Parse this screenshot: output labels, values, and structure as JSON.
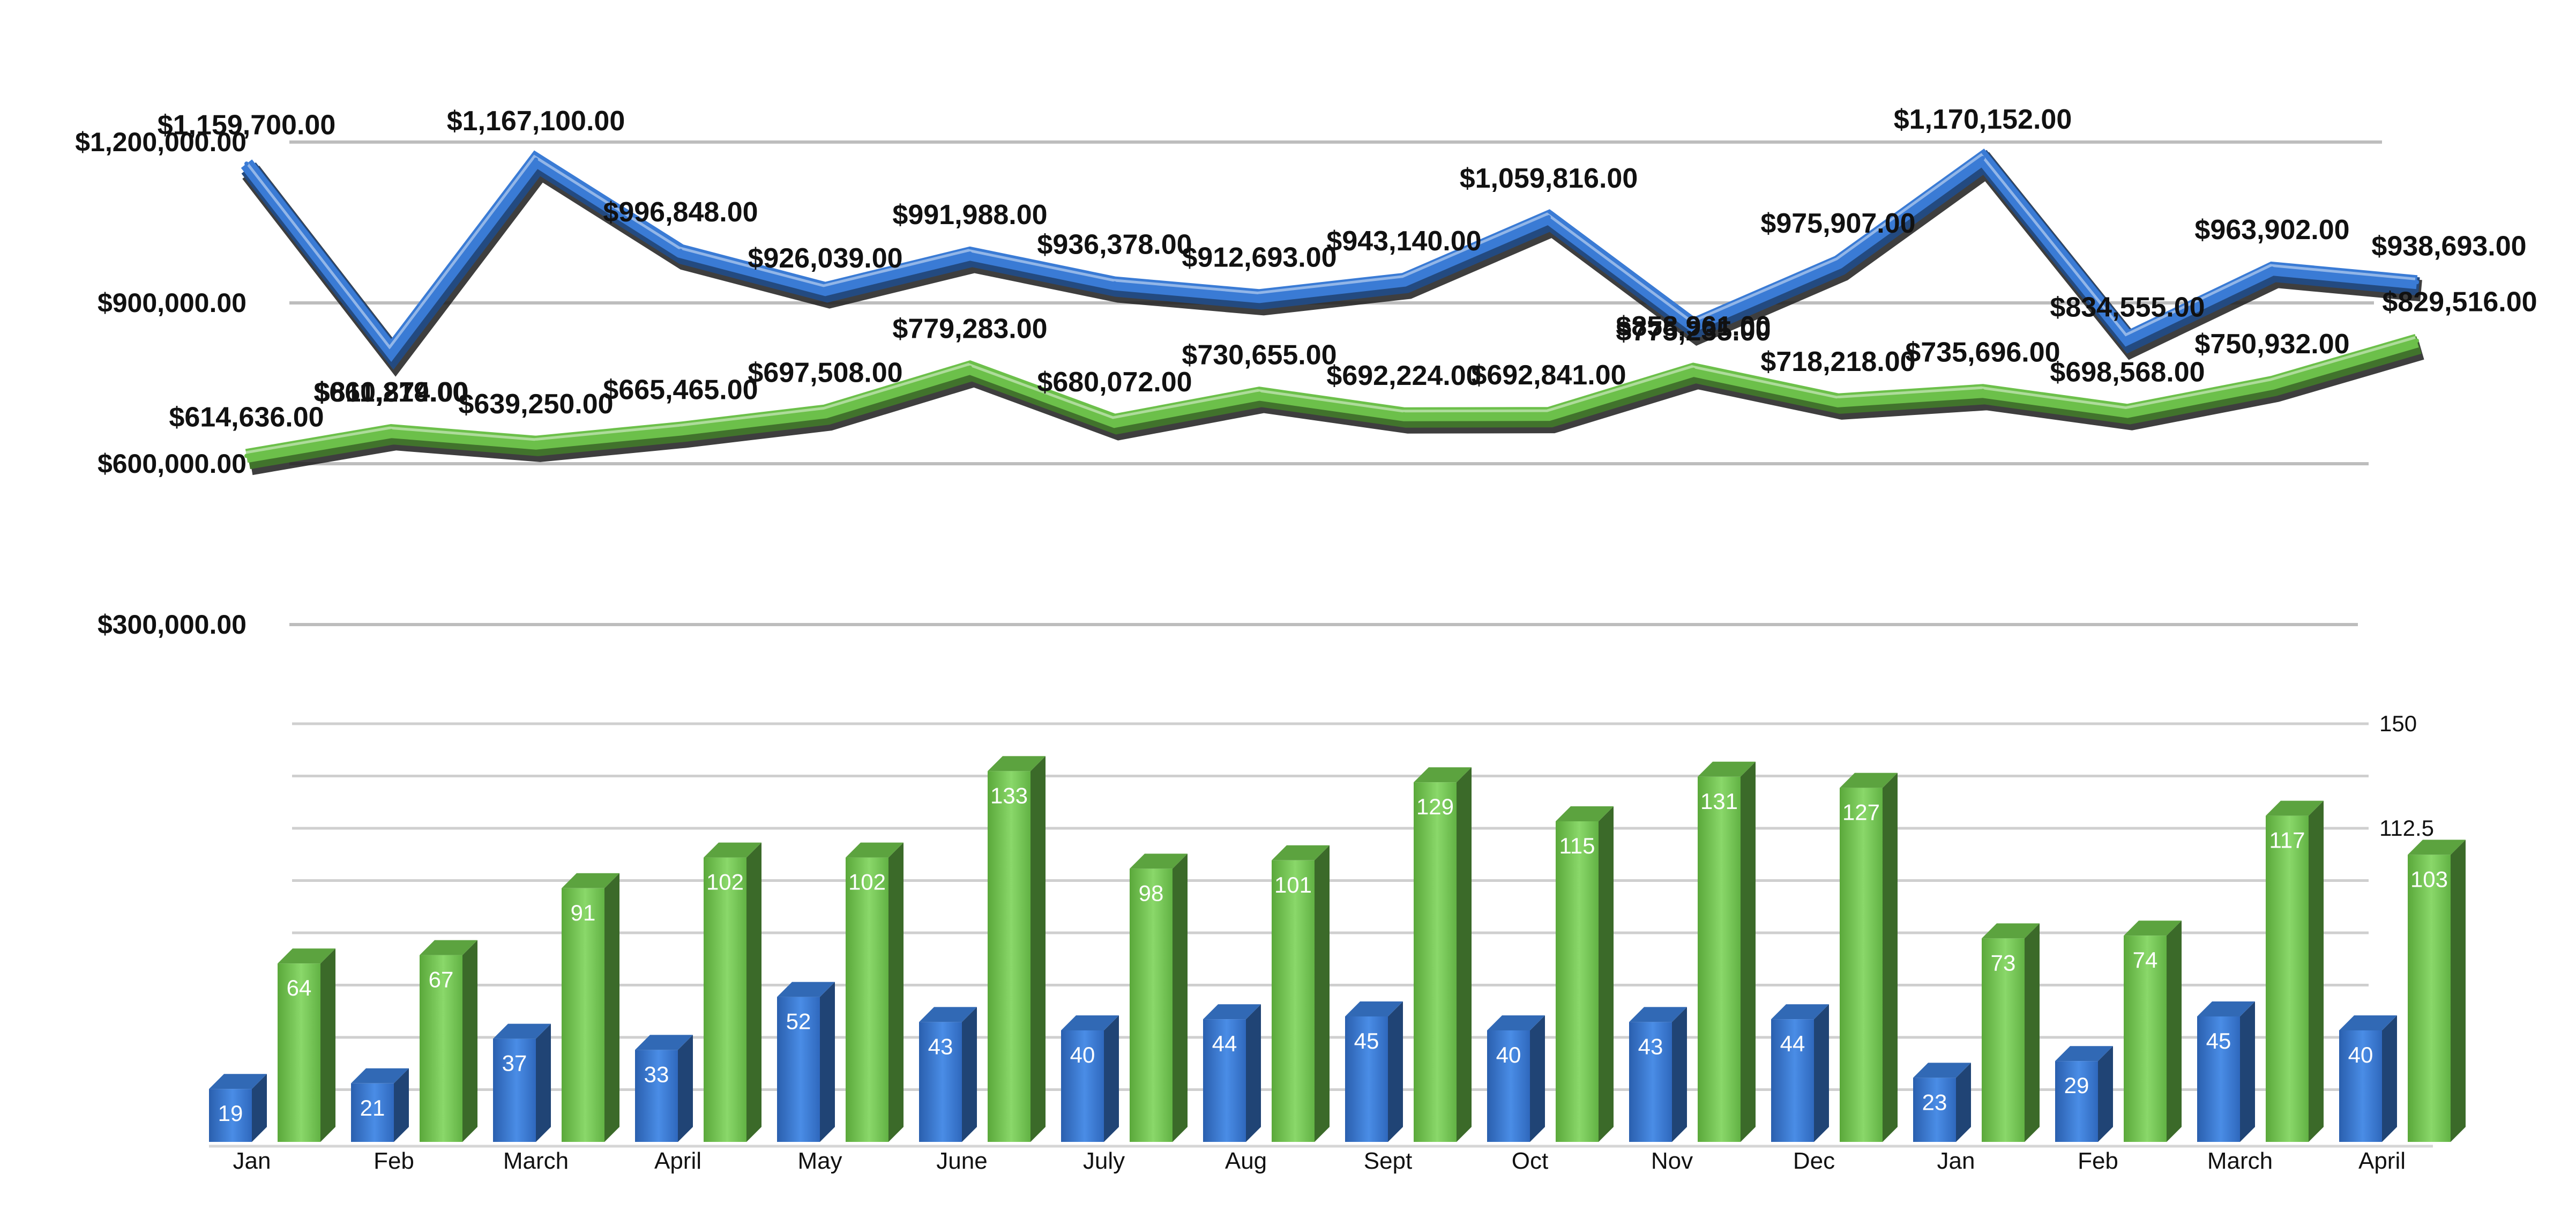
{
  "chart_data": [
    {
      "type": "line",
      "categories": [
        "Jan",
        "Feb",
        "March",
        "April",
        "May",
        "June",
        "July",
        "Aug",
        "Sept",
        "Oct",
        "Nov",
        "Dec",
        "Jan",
        "Feb",
        "March",
        "April"
      ],
      "y_ticks": [
        "$1,200,000.00",
        "$900,000.00",
        "$600,000.00",
        "$300,000.00"
      ],
      "y_tick_values": [
        1200000,
        900000,
        600000,
        300000
      ],
      "ylim": [
        0,
        1200000
      ],
      "series": [
        {
          "color": "#3a7bd5",
          "values": [
            1159700,
            811219,
            1167100,
            996848,
            926039,
            991988,
            936378,
            912693,
            943140,
            1059816,
            858961,
            975907,
            1170152,
            834555,
            963902,
            938693
          ],
          "labels": [
            "$1,159,700.00",
            "$811,219.00",
            "$1,167,100.00",
            "$996,848.00",
            "$926,039.00",
            "$991,988.00",
            "$936,378.00",
            "$912,693.00",
            "$943,140.00",
            "$1,059,816.00",
            "$858,961.00",
            "$975,907.00",
            "$1,170,152.00",
            "$834,555.00",
            "$963,902.00",
            "$938,693.00"
          ]
        },
        {
          "color": "#6cc04a",
          "values": [
            614636,
            660874,
            639250,
            665465,
            697508,
            779283,
            680072,
            730655,
            692224,
            692841,
            775235,
            718218,
            735696,
            698568,
            750932,
            829516
          ],
          "labels": [
            "$614,636.00",
            "$660,874.00",
            "$639,250.00",
            "$665,465.00",
            "$697,508.00",
            "$779,283.00",
            "$680,072.00",
            "$730,655.00",
            "$692,224.00",
            "$692,841.00",
            "$775,235.00",
            "$718,218.00",
            "$735,696.00",
            "$698,568.00",
            "$750,932.00",
            "$829,516.00"
          ]
        }
      ],
      "grid": true
    },
    {
      "type": "bar",
      "categories": [
        "Jan",
        "Feb",
        "March",
        "April",
        "May",
        "June",
        "July",
        "Aug",
        "Sept",
        "Oct",
        "Nov",
        "Dec",
        "Jan",
        "Feb",
        "March",
        "April"
      ],
      "y_ticks": [
        "150",
        "112.5"
      ],
      "y_tick_values": [
        150,
        112.5
      ],
      "ylim": [
        0,
        150
      ],
      "series": [
        {
          "color": "#3a7bd5",
          "values": [
            19,
            21,
            37,
            33,
            52,
            43,
            40,
            44,
            45,
            40,
            43,
            44,
            23,
            29,
            45,
            40
          ]
        },
        {
          "color": "#6cc04a",
          "values": [
            64,
            67,
            91,
            102,
            102,
            133,
            98,
            101,
            129,
            115,
            131,
            127,
            73,
            74,
            117,
            103
          ]
        }
      ],
      "grid": true
    }
  ]
}
